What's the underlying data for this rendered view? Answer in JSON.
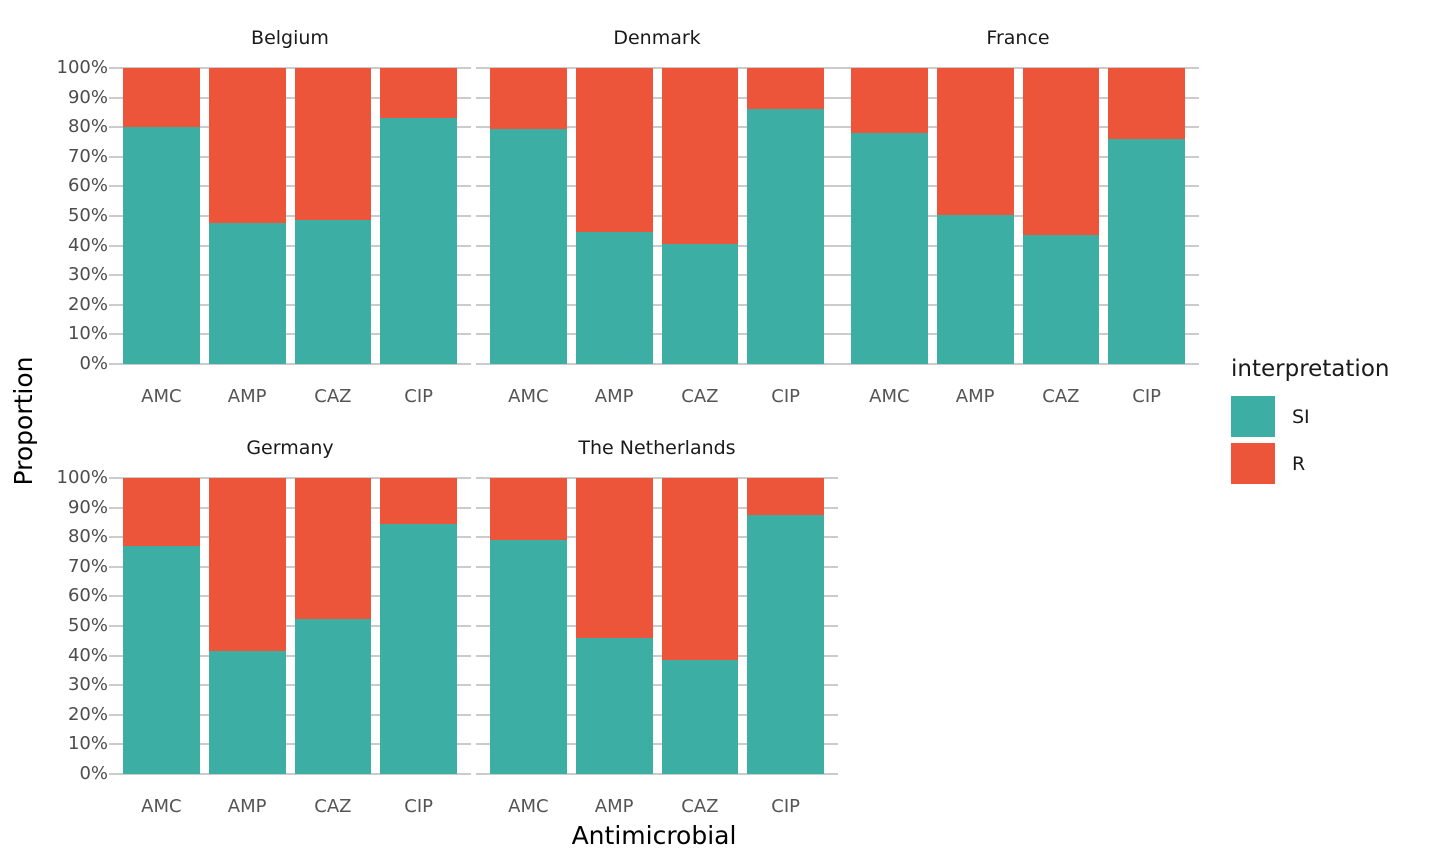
{
  "chart_data": {
    "type": "bar",
    "variant": "stacked-100-percent",
    "title": "",
    "xlabel": "Antimicrobial",
    "ylabel": "Proportion",
    "categories": [
      "AMC",
      "AMP",
      "CAZ",
      "CIP"
    ],
    "y_ticks": [
      "100%",
      "90%",
      "80%",
      "70%",
      "60%",
      "50%",
      "40%",
      "30%",
      "20%",
      "10%",
      "0%"
    ],
    "ylim": [
      0,
      100
    ],
    "grid": true,
    "legend": {
      "title": "interpretation",
      "position": "right",
      "entries": [
        {
          "label": "SI",
          "color": "#3CAEA3"
        },
        {
          "label": "R",
          "color": "#ED553B"
        }
      ]
    },
    "colors": {
      "SI": "#3CAEA3",
      "R": "#ED553B",
      "gridline": "#cbcbcb",
      "tick_text": "#4d4d4d"
    },
    "facets": [
      {
        "title": "Belgium",
        "series": [
          {
            "name": "SI",
            "values": [
              80,
              47.5,
              48.5,
              83
            ]
          },
          {
            "name": "R",
            "values": [
              20,
              52.5,
              51.5,
              17
            ]
          }
        ]
      },
      {
        "title": "Denmark",
        "series": [
          {
            "name": "SI",
            "values": [
              79.5,
              44.5,
              40.5,
              86
            ]
          },
          {
            "name": "R",
            "values": [
              20.5,
              55.5,
              59.5,
              14
            ]
          }
        ]
      },
      {
        "title": "France",
        "series": [
          {
            "name": "SI",
            "values": [
              78,
              50.5,
              43.5,
              76
            ]
          },
          {
            "name": "R",
            "values": [
              22,
              49.5,
              56.5,
              24
            ]
          }
        ]
      },
      {
        "title": "Germany",
        "series": [
          {
            "name": "SI",
            "values": [
              77,
              41.5,
              52.5,
              84.5
            ]
          },
          {
            "name": "R",
            "values": [
              23,
              58.5,
              47.5,
              15.5
            ]
          }
        ]
      },
      {
        "title": "The Netherlands",
        "series": [
          {
            "name": "SI",
            "values": [
              79,
              46,
              38.5,
              87.5
            ]
          },
          {
            "name": "R",
            "values": [
              21,
              54,
              61.5,
              12.5
            ]
          }
        ]
      }
    ]
  }
}
